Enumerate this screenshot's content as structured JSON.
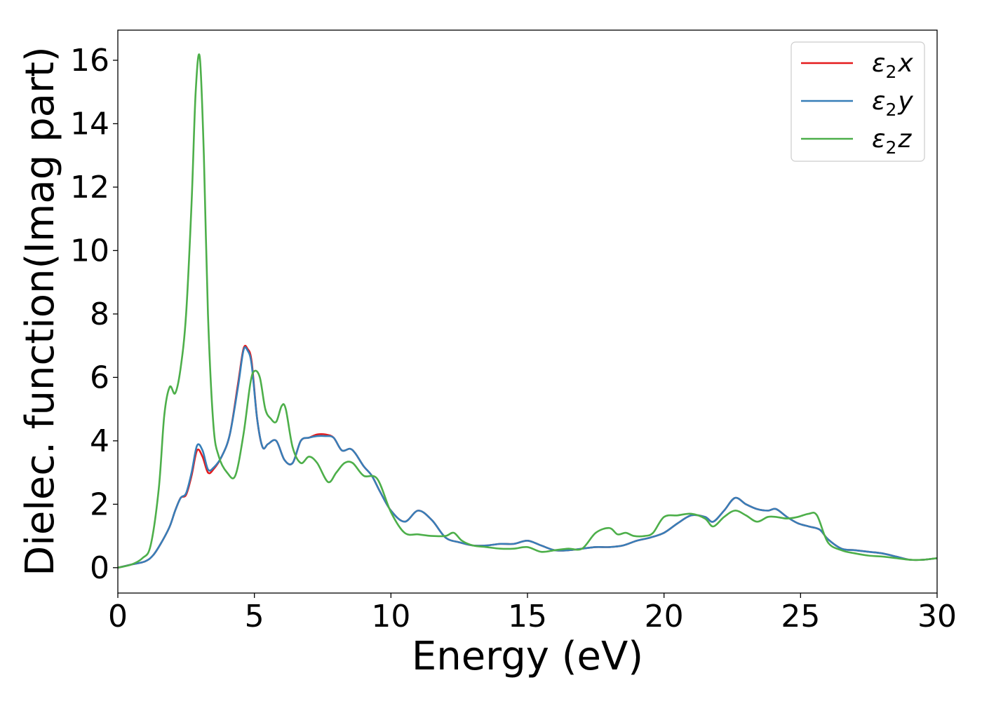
{
  "chart_data": {
    "type": "line",
    "title": "",
    "xlabel": "Energy (eV)",
    "ylabel": "Dielec. function(Imag part)",
    "xlim": [
      0,
      30
    ],
    "ylim": [
      -0.8,
      16.95
    ],
    "xticks": [
      "0",
      "5",
      "10",
      "15",
      "20",
      "25",
      "30"
    ],
    "yticks": [
      "0",
      "2",
      "4",
      "6",
      "8",
      "10",
      "12",
      "14",
      "16"
    ],
    "grid": false,
    "legend_position": "top-right",
    "series": [
      {
        "name": "ε2x",
        "legend": {
          "base": "ε",
          "sub": "2",
          "comp": "x"
        },
        "color": "#e41a1c",
        "x": [
          0,
          0.5,
          1.0,
          1.3,
          1.6,
          1.9,
          2.1,
          2.3,
          2.5,
          2.7,
          2.9,
          3.1,
          3.3,
          3.5,
          3.8,
          4.1,
          4.4,
          4.6,
          4.75,
          4.9,
          5.1,
          5.3,
          5.5,
          5.8,
          6.1,
          6.4,
          6.7,
          7.0,
          7.3,
          7.6,
          7.9,
          8.2,
          8.5,
          8.7,
          9.0,
          9.3,
          9.6,
          10.0,
          10.5,
          11.0,
          11.5,
          12.0,
          12.5,
          13.0,
          13.5,
          14.0,
          14.5,
          15.0,
          15.5,
          16.0,
          16.5,
          17.0,
          17.5,
          18.0,
          18.5,
          19.0,
          19.5,
          20.0,
          20.5,
          21.0,
          21.5,
          21.8,
          22.2,
          22.6,
          23.0,
          23.4,
          23.8,
          24.1,
          24.5,
          24.9,
          25.3,
          25.7,
          26.0,
          26.5,
          27.0,
          27.5,
          28.0,
          28.5,
          29.0,
          29.5,
          30.0
        ],
        "y": [
          0.0,
          0.1,
          0.2,
          0.4,
          0.8,
          1.3,
          1.8,
          2.2,
          2.3,
          2.9,
          3.7,
          3.5,
          3.0,
          3.1,
          3.5,
          4.2,
          5.8,
          6.9,
          6.9,
          6.5,
          4.7,
          3.8,
          3.9,
          4.0,
          3.4,
          3.3,
          4.0,
          4.1,
          4.2,
          4.2,
          4.1,
          3.7,
          3.75,
          3.6,
          3.2,
          2.9,
          2.4,
          1.8,
          1.45,
          1.8,
          1.5,
          0.95,
          0.8,
          0.7,
          0.7,
          0.75,
          0.75,
          0.85,
          0.7,
          0.55,
          0.55,
          0.6,
          0.65,
          0.65,
          0.7,
          0.85,
          0.95,
          1.1,
          1.4,
          1.65,
          1.6,
          1.45,
          1.8,
          2.2,
          2.0,
          1.85,
          1.8,
          1.85,
          1.6,
          1.4,
          1.3,
          1.2,
          0.9,
          0.6,
          0.55,
          0.5,
          0.45,
          0.35,
          0.25,
          0.25,
          0.3
        ]
      },
      {
        "name": "ε2y",
        "legend": {
          "base": "ε",
          "sub": "2",
          "comp": "y"
        },
        "color": "#377eb8",
        "x": [
          0,
          0.5,
          1.0,
          1.3,
          1.6,
          1.9,
          2.1,
          2.3,
          2.5,
          2.7,
          2.9,
          3.1,
          3.3,
          3.5,
          3.8,
          4.1,
          4.4,
          4.6,
          4.75,
          4.9,
          5.1,
          5.3,
          5.5,
          5.8,
          6.1,
          6.4,
          6.7,
          7.0,
          7.3,
          7.6,
          7.9,
          8.2,
          8.5,
          8.7,
          9.0,
          9.3,
          9.6,
          10.0,
          10.5,
          11.0,
          11.5,
          12.0,
          12.5,
          13.0,
          13.5,
          14.0,
          14.5,
          15.0,
          15.5,
          16.0,
          16.5,
          17.0,
          17.5,
          18.0,
          18.5,
          19.0,
          19.5,
          20.0,
          20.5,
          21.0,
          21.5,
          21.8,
          22.2,
          22.6,
          23.0,
          23.4,
          23.8,
          24.1,
          24.5,
          24.9,
          25.3,
          25.7,
          26.0,
          26.5,
          27.0,
          27.5,
          28.0,
          28.5,
          29.0,
          29.5,
          30.0
        ],
        "y": [
          0.0,
          0.1,
          0.2,
          0.4,
          0.8,
          1.3,
          1.8,
          2.2,
          2.35,
          3.0,
          3.85,
          3.7,
          3.1,
          3.15,
          3.5,
          4.2,
          5.7,
          6.85,
          6.85,
          6.4,
          4.7,
          3.8,
          3.9,
          4.0,
          3.4,
          3.3,
          4.0,
          4.1,
          4.15,
          4.15,
          4.1,
          3.7,
          3.75,
          3.6,
          3.2,
          2.9,
          2.4,
          1.8,
          1.45,
          1.8,
          1.5,
          0.95,
          0.8,
          0.7,
          0.7,
          0.75,
          0.75,
          0.85,
          0.7,
          0.55,
          0.55,
          0.6,
          0.65,
          0.65,
          0.7,
          0.85,
          0.95,
          1.1,
          1.4,
          1.65,
          1.6,
          1.45,
          1.8,
          2.2,
          2.0,
          1.85,
          1.8,
          1.85,
          1.6,
          1.4,
          1.3,
          1.2,
          0.9,
          0.6,
          0.55,
          0.5,
          0.45,
          0.35,
          0.25,
          0.25,
          0.3
        ]
      },
      {
        "name": "ε2z",
        "legend": {
          "base": "ε",
          "sub": "2",
          "comp": "z"
        },
        "color": "#4daf4a",
        "x": [
          0,
          0.5,
          0.9,
          1.2,
          1.5,
          1.7,
          1.9,
          2.1,
          2.3,
          2.5,
          2.7,
          2.85,
          3.0,
          3.15,
          3.3,
          3.5,
          3.7,
          4.0,
          4.3,
          4.6,
          4.85,
          5.0,
          5.2,
          5.4,
          5.6,
          5.8,
          6.0,
          6.15,
          6.4,
          6.7,
          7.0,
          7.3,
          7.7,
          8.0,
          8.3,
          8.6,
          9.0,
          9.5,
          10.0,
          10.5,
          11.0,
          11.5,
          12.0,
          12.3,
          12.6,
          13.0,
          13.5,
          14.0,
          14.5,
          15.0,
          15.5,
          16.0,
          16.5,
          17.0,
          17.5,
          18.0,
          18.3,
          18.6,
          18.9,
          19.3,
          19.6,
          20.0,
          20.5,
          21.0,
          21.5,
          21.8,
          22.2,
          22.6,
          23.0,
          23.4,
          23.8,
          24.1,
          24.5,
          24.9,
          25.3,
          25.6,
          26.0,
          26.5,
          27.0,
          27.5,
          28.0,
          28.5,
          29.0,
          29.5,
          30.0
        ],
        "y": [
          0.0,
          0.1,
          0.3,
          0.7,
          2.5,
          4.8,
          5.7,
          5.5,
          6.3,
          8.0,
          11.5,
          15.0,
          16.1,
          13.0,
          8.0,
          4.5,
          3.5,
          3.0,
          2.9,
          4.2,
          5.8,
          6.2,
          6.0,
          5.0,
          4.7,
          4.6,
          5.1,
          5.0,
          3.8,
          3.3,
          3.5,
          3.3,
          2.7,
          3.0,
          3.3,
          3.3,
          2.9,
          2.8,
          1.75,
          1.1,
          1.05,
          1.0,
          1.0,
          1.1,
          0.85,
          0.7,
          0.65,
          0.6,
          0.6,
          0.65,
          0.5,
          0.55,
          0.6,
          0.6,
          1.1,
          1.25,
          1.05,
          1.1,
          1.0,
          1.0,
          1.1,
          1.6,
          1.65,
          1.7,
          1.55,
          1.3,
          1.6,
          1.8,
          1.65,
          1.45,
          1.6,
          1.6,
          1.55,
          1.6,
          1.7,
          1.65,
          0.8,
          0.55,
          0.45,
          0.38,
          0.35,
          0.3,
          0.25,
          0.25,
          0.3
        ]
      }
    ]
  }
}
